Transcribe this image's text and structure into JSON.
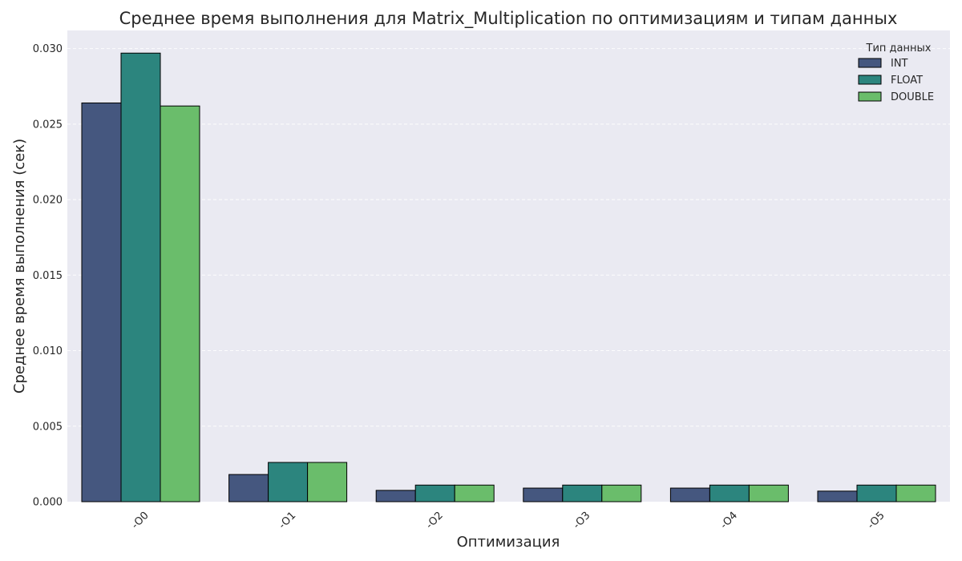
{
  "chart_data": {
    "type": "bar",
    "title": "Среднее время выполнения для  Matrix_Multiplication по оптимизациям и типам данных",
    "xlabel": "Оптимизация",
    "ylabel": "Среднее время выполнения (сек)",
    "categories": [
      "-O0",
      "-O1",
      "-O2",
      "-O3",
      "-O4",
      "-O5"
    ],
    "ylim": [
      0,
      0.0312
    ],
    "yticks": [
      "0.000",
      "0.005",
      "0.010",
      "0.015",
      "0.020",
      "0.025",
      "0.030"
    ],
    "grid": true,
    "legend": {
      "title": "Тип данных",
      "placement": "top-right"
    },
    "series": [
      {
        "name": "  INT",
        "color": "#45577f",
        "values": [
          0.0264,
          0.0018,
          0.00075,
          0.0009,
          0.0009,
          0.0007
        ]
      },
      {
        "name": "  FLOAT",
        "color": "#2c857e",
        "values": [
          0.0297,
          0.0026,
          0.0011,
          0.0011,
          0.0011,
          0.0011
        ]
      },
      {
        "name": "  DOUBLE",
        "color": "#6abd6b",
        "values": [
          0.0262,
          0.0026,
          0.0011,
          0.0011,
          0.0011,
          0.0011
        ]
      }
    ]
  }
}
